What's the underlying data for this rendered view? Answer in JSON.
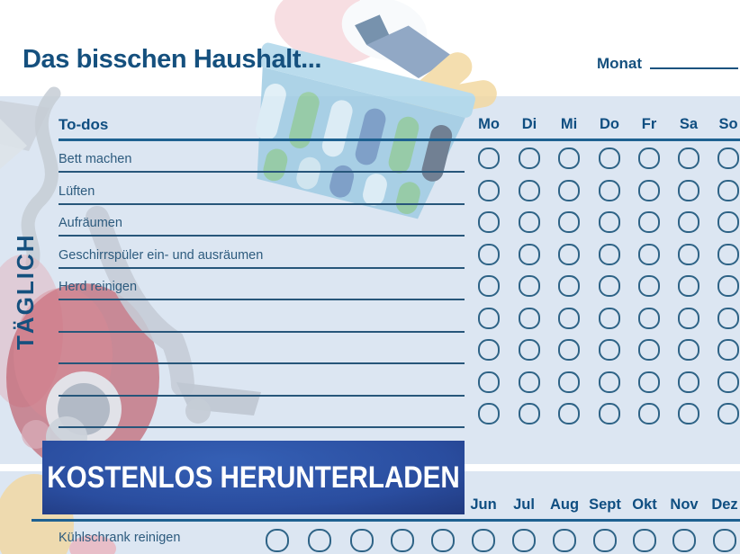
{
  "header": {
    "title": "Das bisschen Haushalt...",
    "month_label": "Monat",
    "month_value": ""
  },
  "weekly": {
    "side_label": "TÄGLICH",
    "column_header": "To-dos",
    "days": [
      "Mo",
      "Di",
      "Mi",
      "Do",
      "Fr",
      "Sa",
      "So"
    ],
    "todo_rows": [
      "Bett machen",
      "Lüften",
      "Aufräumen",
      "Geschirrspüler ein- und ausräumen",
      "Herd reinigen",
      "",
      "",
      "",
      ""
    ]
  },
  "monthly": {
    "months_visible": [
      "Jun",
      "Jul",
      "Aug",
      "Sept",
      "Okt",
      "Nov",
      "Dez"
    ],
    "checkbox_columns": 12,
    "todo_rows": [
      "Kühlschrank reinigen"
    ]
  },
  "banner": {
    "label": "KOSTENLOS HERUNTERLADEN"
  },
  "illustrations": [
    "laundry-basket-illustration",
    "vacuum-cleaner-illustration",
    "person-shapes-illustration"
  ],
  "colors": {
    "accent_dark_blue": "#15507E",
    "day_header_blue": "#0F4E81",
    "panel_light_blue": "#DCE6F2",
    "line_thick": "#1E6191",
    "line_thin": "#27567A",
    "circle_stroke": "#2E6386",
    "banner_center": "#2A4D9F",
    "banner_edge": "#162457",
    "banner_text": "#FFFFFF"
  }
}
